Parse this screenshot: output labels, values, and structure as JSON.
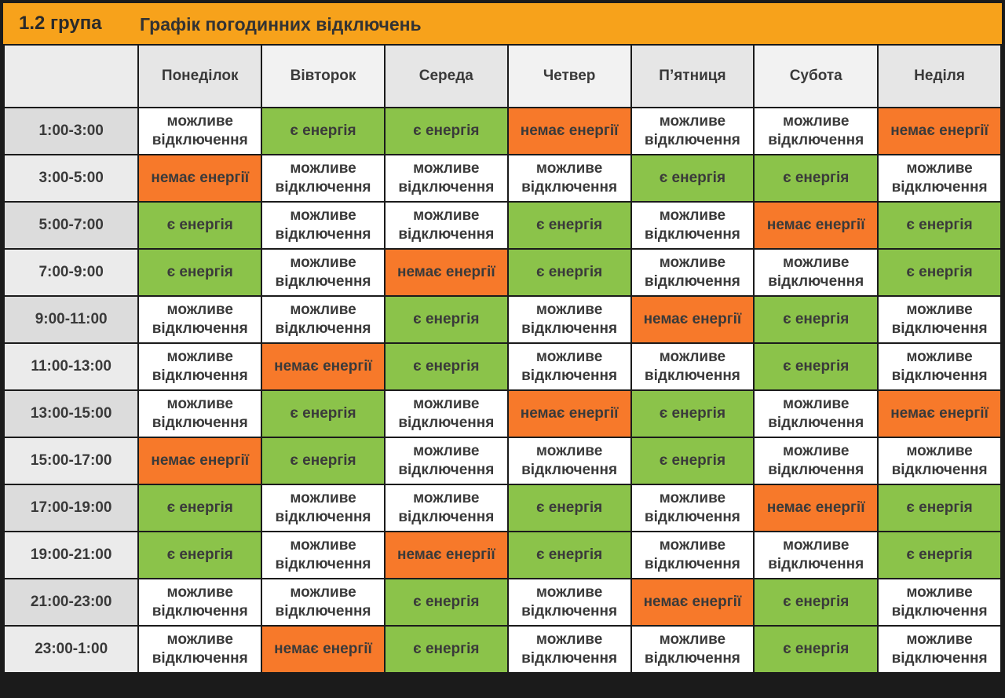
{
  "header": {
    "group": "1.2 група",
    "title": "Графік погодинних відключень"
  },
  "days": [
    "Понеділок",
    "Вівторок",
    "Середа",
    "Четвер",
    "П’ятниця",
    "Субота",
    "Неділя"
  ],
  "status_text": {
    "maybe": "можливе відключення",
    "yes": "є енергія",
    "no": "немає енергії"
  },
  "colors": {
    "maybe": "#ffffff",
    "yes": "#8bc34a",
    "no": "#f7792a",
    "header": "#f7a21b"
  },
  "rows": [
    {
      "time": "1:00-3:00",
      "cells": [
        "можливе відключення",
        "є енергія",
        "є енергія",
        "немає енергії",
        "можливе відключення",
        "можливе відключення",
        "немає енергії"
      ]
    },
    {
      "time": "3:00-5:00",
      "cells": [
        "немає енергії",
        "можливе відключення",
        "можливе відключення",
        "можливе відключення",
        "є енергія",
        "є енергія",
        "можливе відключення"
      ]
    },
    {
      "time": "5:00-7:00",
      "cells": [
        "є енергія",
        "можливе відключення",
        "можливе відключення",
        "є енергія",
        "можливе відключення",
        "немає енергії",
        "є енергія"
      ]
    },
    {
      "time": "7:00-9:00",
      "cells": [
        "є енергія",
        "можливе відключення",
        "немає енергії",
        "є енергія",
        "можливе відключення",
        "можливе відключення",
        "є енергія"
      ]
    },
    {
      "time": "9:00-11:00",
      "cells": [
        "можливе відключення",
        "можливе відключення",
        "є енергія",
        "можливе відключення",
        "немає енергії",
        "є енергія",
        "можливе відключення"
      ]
    },
    {
      "time": "11:00-13:00",
      "cells": [
        "можливе відключення",
        "немає енергії",
        "є енергія",
        "можливе відключення",
        "можливе відключення",
        "є енергія",
        "можливе відключення"
      ]
    },
    {
      "time": "13:00-15:00",
      "cells": [
        "можливе відключення",
        "є енергія",
        "можливе відключення",
        "немає енергії",
        "є енергія",
        "можливе відключення",
        "немає енергії"
      ]
    },
    {
      "time": "15:00-17:00",
      "cells": [
        "немає енергії",
        "є енергія",
        "можливе відключення",
        "можливе відключення",
        "є енергія",
        "можливе відключення",
        "можливе відключення"
      ]
    },
    {
      "time": "17:00-19:00",
      "cells": [
        "є енергія",
        "можливе відключення",
        "можливе відключення",
        "є енергія",
        "можливе відключення",
        "немає енергії",
        "є енергія"
      ]
    },
    {
      "time": "19:00-21:00",
      "cells": [
        "є енергія",
        "можливе відключення",
        "немає енергії",
        "є енергія",
        "можливе відключення",
        "можливе відключення",
        "є енергія"
      ]
    },
    {
      "time": "21:00-23:00",
      "cells": [
        "можливе відключення",
        "можливе відключення",
        "є енергія",
        "можливе відключення",
        "немає енергії",
        "є енергія",
        "можливе відключення"
      ]
    },
    {
      "time": "23:00-1:00",
      "cells": [
        "можливе відключення",
        "немає енергії",
        "є енергія",
        "можливе відключення",
        "можливе відключення",
        "є енергія",
        "можливе відключення"
      ]
    }
  ]
}
